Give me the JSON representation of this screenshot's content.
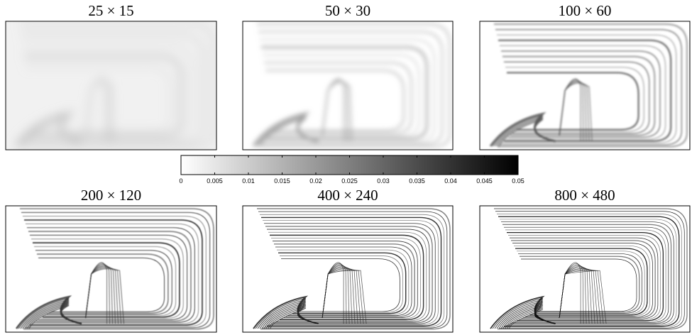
{
  "chart_data": {
    "type": "heatmap-panels",
    "panels": [
      {
        "title": "25 × 15"
      },
      {
        "title": "50 × 30"
      },
      {
        "title": "100 × 60"
      },
      {
        "title": "200 × 120"
      },
      {
        "title": "400 × 240"
      },
      {
        "title": "800 × 480"
      }
    ],
    "colorbar": {
      "lim": [
        0,
        0.05
      ],
      "ticks": [
        0,
        0.005,
        0.01,
        0.015,
        0.02,
        0.025,
        0.03,
        0.035,
        0.04,
        0.045,
        0.05
      ],
      "colors": [
        "#ffffff",
        "#000000"
      ]
    }
  }
}
